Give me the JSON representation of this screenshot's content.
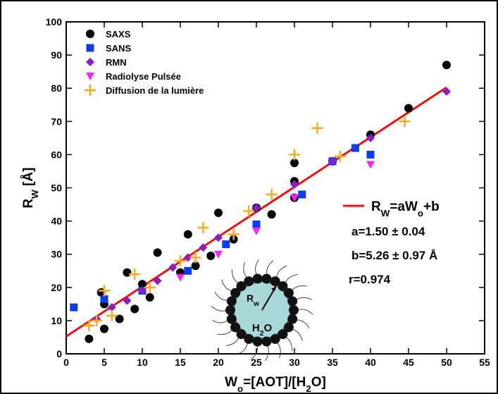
{
  "chart_data": {
    "type": "scatter",
    "xlabel": [
      {
        "t": "W"
      },
      {
        "t": "o",
        "sub": true
      },
      {
        "t": "=[AOT]/[H"
      },
      {
        "t": "2",
        "sub": true
      },
      {
        "t": "O]"
      }
    ],
    "ylabel": [
      {
        "t": "R"
      },
      {
        "t": "W",
        "sub": true
      },
      {
        "t": " [Å]"
      }
    ],
    "xlim": [
      0,
      55
    ],
    "ylim": [
      0,
      100
    ],
    "xticks": [
      0,
      5,
      10,
      15,
      20,
      25,
      30,
      35,
      40,
      45,
      50,
      55
    ],
    "yticks": [
      0,
      10,
      20,
      30,
      40,
      50,
      60,
      70,
      80,
      90,
      100
    ],
    "series": [
      {
        "name": "SAXS",
        "color": "#000000",
        "marker": "circle",
        "x": [
          3,
          4.6,
          5,
          5,
          7,
          8,
          9,
          10,
          11,
          12,
          15,
          16,
          17,
          19,
          20,
          22,
          25,
          27,
          30,
          30,
          30,
          35,
          40,
          45,
          50
        ],
        "values": [
          4.5,
          18.5,
          15,
          7.5,
          10.5,
          24.5,
          13.5,
          21,
          17,
          30.5,
          24.5,
          36,
          26.5,
          29.5,
          42.5,
          34.5,
          44,
          42,
          57.5,
          52,
          47,
          58,
          66,
          74,
          87
        ]
      },
      {
        "name": "SANS",
        "color": "#0a3cf5",
        "marker": "square",
        "x": [
          1,
          5,
          10,
          16,
          21,
          25,
          31,
          35,
          38,
          40
        ],
        "values": [
          14,
          16.5,
          19,
          25,
          33,
          39,
          48,
          58,
          62,
          60
        ]
      },
      {
        "name": "RMN",
        "color": "#8a1fc9",
        "marker": "diamond",
        "x": [
          4,
          6,
          8,
          10,
          12,
          14,
          16,
          18,
          20,
          25,
          30,
          35,
          40,
          50
        ],
        "values": [
          10.5,
          14,
          16,
          19,
          22,
          26,
          29,
          32,
          35,
          44,
          51,
          58,
          65,
          79
        ]
      },
      {
        "name": "Radiolyse Pulsée",
        "color": "#ff22ff",
        "marker": "triangle-down",
        "x": [
          15,
          20,
          25,
          30,
          40
        ],
        "values": [
          23,
          30,
          37,
          47,
          57
        ]
      },
      {
        "name": "Diffusion de la lumière",
        "color": "#ffa820",
        "marker": "plus",
        "x": [
          3,
          4,
          5,
          6,
          9,
          11,
          15,
          17,
          18,
          22,
          24,
          27,
          30,
          33,
          36,
          44.5
        ],
        "values": [
          8.5,
          10,
          19,
          11.5,
          24,
          20,
          28,
          29,
          38,
          36,
          43,
          48,
          60,
          68,
          59.5,
          70
        ]
      }
    ],
    "fit": {
      "label": [
        {
          "t": "R"
        },
        {
          "t": "W",
          "sub": true
        },
        {
          "t": "=aW"
        },
        {
          "t": "o",
          "sub": true
        },
        {
          "t": "+b"
        }
      ],
      "color": "#ee1111",
      "x": [
        0,
        50
      ],
      "values": [
        5.26,
        80.26
      ]
    },
    "annotations": [
      "a=1.50 ± 0.04",
      "b=5.26 ± 0.97 Å",
      "r=0.974"
    ],
    "inset": {
      "radius_label": [
        {
          "t": "R"
        },
        {
          "t": "w",
          "sub": true
        }
      ],
      "core_label": [
        {
          "t": "H"
        },
        {
          "t": "2",
          "sub": true
        },
        {
          "t": "O"
        }
      ]
    }
  }
}
